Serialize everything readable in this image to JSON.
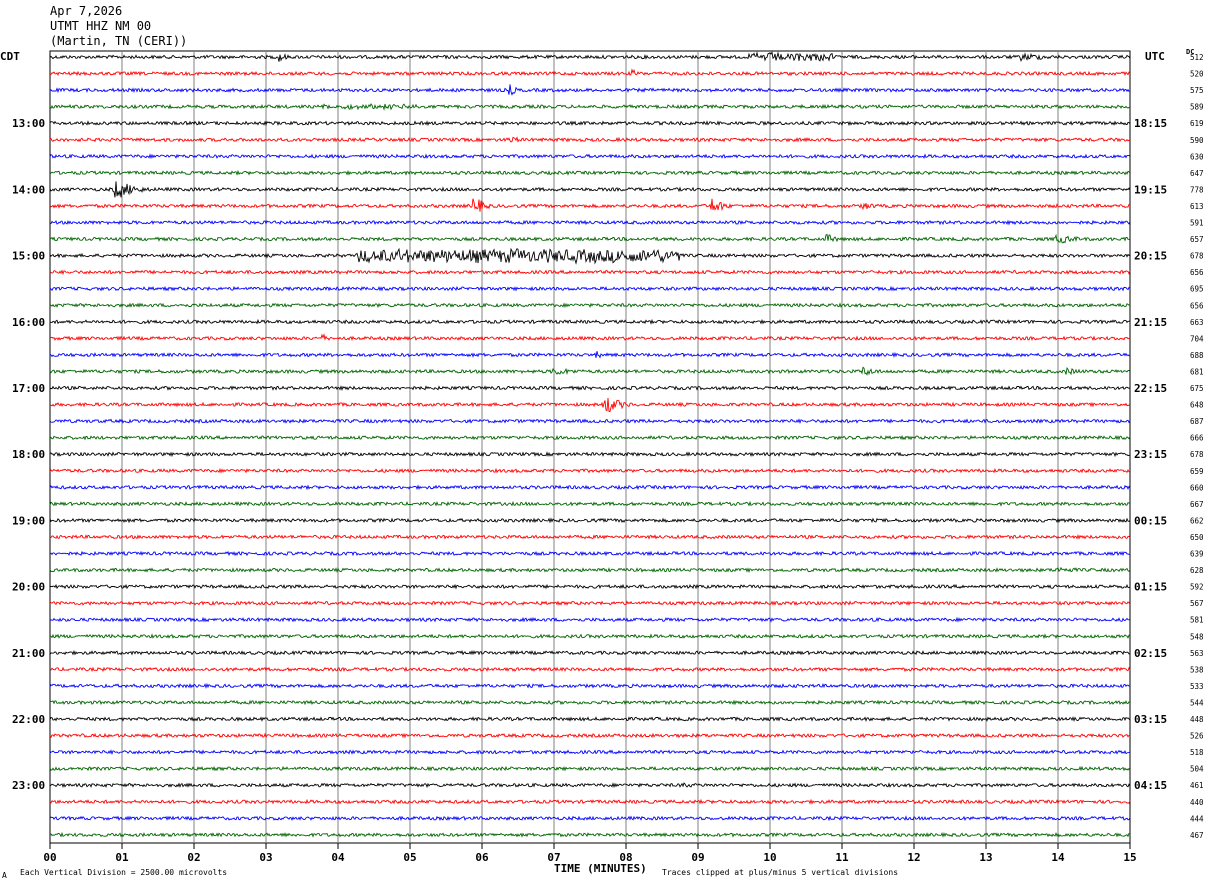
{
  "header": {
    "date": "Apr 7,2026",
    "station": "UTMT HHZ NM 00",
    "location": "(Martin, TN (CERI))"
  },
  "labels": {
    "left_tz": "CDT",
    "right_tz": "UTC",
    "dc": "DC",
    "xlabel": "TIME (MINUTES)",
    "scale_note": "Each Vertical Division = 2500.00 microvolts",
    "clip_note": "Traces clipped at plus/minus 5 vertical divisions",
    "corner_mark": "A"
  },
  "colors": {
    "cycle": [
      "#000000",
      "#ff0000",
      "#0000ff",
      "#006400"
    ],
    "grid": "#808080"
  },
  "chart_data": {
    "type": "line",
    "title": "UTMT HHZ NM 00",
    "xlabel": "TIME (MINUTES)",
    "xlim": [
      0,
      15
    ],
    "x_ticks": [
      "00",
      "01",
      "02",
      "03",
      "04",
      "05",
      "06",
      "07",
      "08",
      "09",
      "10",
      "11",
      "12",
      "13",
      "14",
      "15"
    ],
    "trace_minutes": 15,
    "left_hour_labels": [
      "13:00",
      "14:00",
      "15:00",
      "16:00",
      "17:00",
      "18:00",
      "19:00",
      "20:00",
      "21:00",
      "22:00",
      "23:00"
    ],
    "right_hour_labels": [
      "18:15",
      "19:15",
      "20:15",
      "21:15",
      "22:15",
      "23:15",
      "00:15",
      "01:15",
      "02:15",
      "03:15",
      "04:15"
    ],
    "first_hour_row": 4,
    "rows_per_hour": 4,
    "dc_offsets": [
      512,
      520,
      575,
      589,
      619,
      590,
      630,
      647,
      778,
      613,
      591,
      657,
      678,
      656,
      695,
      656,
      663,
      704,
      688,
      681,
      675,
      648,
      687,
      666,
      678,
      659,
      660,
      667,
      662,
      650,
      639,
      628,
      592,
      567,
      581,
      548,
      563,
      538,
      533,
      544,
      448,
      526,
      518,
      504,
      461,
      440,
      444,
      467
    ],
    "events": [
      {
        "row": 0,
        "minute": 3.2,
        "amp": 6,
        "dur": 0.15
      },
      {
        "row": 0,
        "minute": 10.3,
        "amp": 5,
        "dur": 1.2
      },
      {
        "row": 0,
        "minute": 13.5,
        "amp": 4,
        "dur": 1.0
      },
      {
        "row": 1,
        "minute": 8.1,
        "amp": 4,
        "dur": 0.2
      },
      {
        "row": 2,
        "minute": 6.4,
        "amp": 6,
        "dur": 0.15
      },
      {
        "row": 3,
        "minute": 4.5,
        "amp": 3,
        "dur": 1.5
      },
      {
        "row": 5,
        "minute": 6.4,
        "amp": 4,
        "dur": 0.3
      },
      {
        "row": 8,
        "minute": 0.9,
        "amp": 11,
        "dur": 0.5
      },
      {
        "row": 9,
        "minute": 5.9,
        "amp": 10,
        "dur": 0.25
      },
      {
        "row": 9,
        "minute": 9.2,
        "amp": 9,
        "dur": 0.3
      },
      {
        "row": 9,
        "minute": 11.3,
        "amp": 4,
        "dur": 0.4
      },
      {
        "row": 11,
        "minute": 10.8,
        "amp": 5,
        "dur": 0.3
      },
      {
        "row": 11,
        "minute": 14.0,
        "amp": 5,
        "dur": 0.6
      },
      {
        "row": 12,
        "minute": 6.5,
        "amp": 8,
        "dur": 4.5
      },
      {
        "row": 17,
        "minute": 3.8,
        "amp": 4,
        "dur": 0.15
      },
      {
        "row": 18,
        "minute": 7.6,
        "amp": 4,
        "dur": 0.15
      },
      {
        "row": 19,
        "minute": 7.0,
        "amp": 4,
        "dur": 0.8
      },
      {
        "row": 19,
        "minute": 11.3,
        "amp": 5,
        "dur": 0.4
      },
      {
        "row": 19,
        "minute": 14.1,
        "amp": 4,
        "dur": 0.5
      },
      {
        "row": 21,
        "minute": 7.7,
        "amp": 11,
        "dur": 0.4
      },
      {
        "row": 31,
        "minute": 14.0,
        "amp": 3,
        "dur": 1.0
      },
      {
        "row": 44,
        "minute": 8.8,
        "amp": 3,
        "dur": 0.4
      }
    ]
  }
}
